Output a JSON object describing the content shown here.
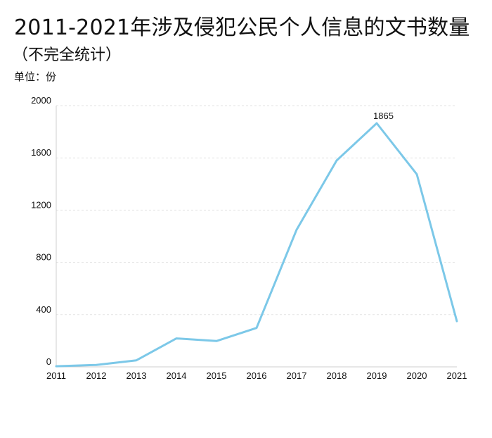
{
  "header": {
    "title": "2011-2021年涉及侵犯公民个人信息的文书数量",
    "subtitle": "（不完全统计）",
    "unit": "单位：份"
  },
  "chart_data": {
    "type": "line",
    "title": "2011-2021年涉及侵犯公民个人信息的文书数量",
    "subtitle": "（不完全统计）",
    "unit_label": "单位：份",
    "xlabel": "",
    "ylabel": "",
    "x": [
      "2011",
      "2012",
      "2013",
      "2014",
      "2015",
      "2016",
      "2017",
      "2018",
      "2019",
      "2020",
      "2021"
    ],
    "series": [
      {
        "values": [
          5,
          15,
          50,
          218,
          198,
          298,
          1050,
          1580,
          1865,
          1475,
          350
        ],
        "color": "#7cc8e8"
      }
    ],
    "data_labels": [
      {
        "x": "2019",
        "text": "1865"
      }
    ],
    "ylim": [
      0,
      2000
    ],
    "yticks": [
      0,
      400,
      800,
      1200,
      1600,
      2000
    ],
    "grid": true,
    "legend": "none",
    "colors": {
      "line": "#7cc8e8",
      "grid": "#e3e3e3",
      "axis": "#cfcfcf",
      "text": "#111111"
    }
  }
}
